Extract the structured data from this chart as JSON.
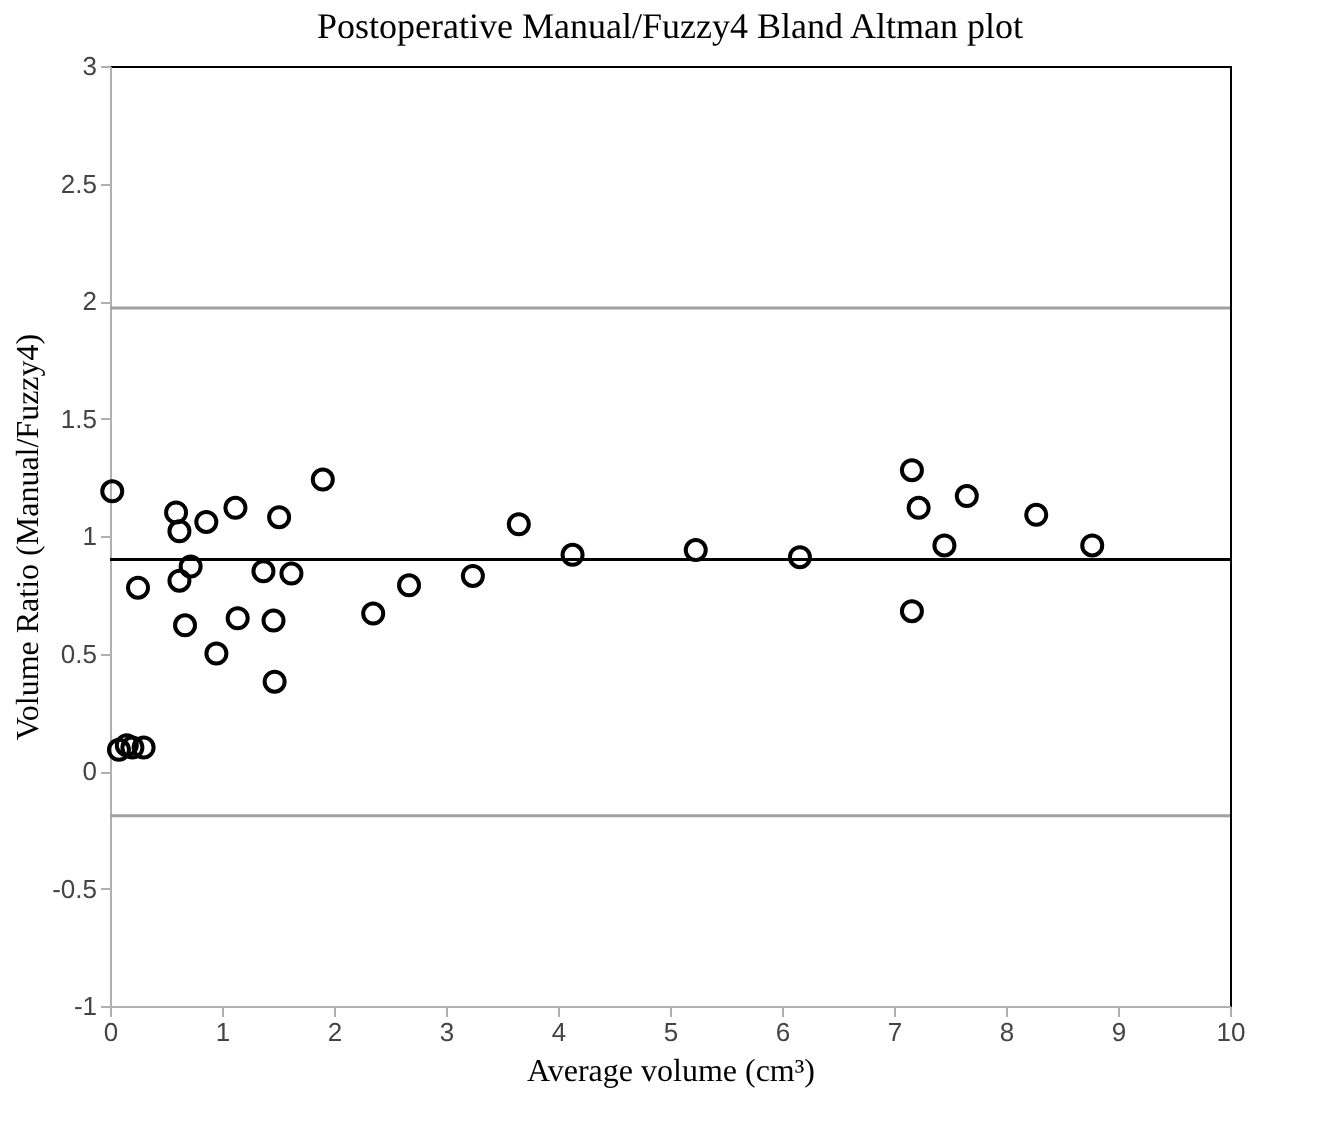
{
  "chart_data": {
    "type": "scatter",
    "title": "Postoperative Manual/Fuzzy4 Bland Altman plot",
    "xlabel": "Average volume (cm³)",
    "ylabel": "Volume Ratio (Manual/Fuzzy4)",
    "marker": "circle",
    "grid": false,
    "legend": false,
    "series": [
      {
        "color": "#000000",
        "x": [
          0.02,
          0.59,
          0.62,
          0.86,
          1.12,
          1.51,
          1.9,
          3.65,
          0.25,
          0.62,
          0.72,
          1.37,
          1.62,
          0.67,
          1.14,
          1.46,
          0.95,
          1.47,
          2.35,
          2.67,
          3.24,
          0.08,
          0.15,
          0.2,
          0.3,
          4.13,
          5.23,
          6.16,
          7.16,
          7.22,
          7.65,
          7.45,
          7.16,
          8.27,
          8.77
        ],
        "values": [
          1.19,
          1.1,
          1.02,
          1.06,
          1.12,
          1.08,
          1.24,
          1.05,
          0.78,
          0.81,
          0.87,
          0.85,
          0.84,
          0.62,
          0.65,
          0.64,
          0.5,
          0.38,
          0.67,
          0.79,
          0.83,
          0.09,
          0.11,
          0.1,
          0.1,
          0.92,
          0.94,
          0.91,
          1.28,
          1.12,
          1.17,
          0.96,
          0.68,
          1.09,
          0.96
        ]
      }
    ],
    "ref_lines": [
      {
        "axis": "y",
        "value": 0.9,
        "color": "#000000"
      },
      {
        "axis": "y",
        "value": 1.97,
        "color": "#a0a0a0"
      },
      {
        "axis": "y",
        "value": -0.19,
        "color": "#a0a0a0"
      }
    ],
    "xlim": [
      0,
      10
    ],
    "xticks": [
      0,
      1,
      2,
      3,
      4,
      5,
      6,
      7,
      8,
      9,
      10
    ],
    "ylim": [
      -1,
      3
    ],
    "yticks": [
      -1,
      -0.5,
      0,
      0.5,
      1,
      1.5,
      2,
      2.5,
      3
    ]
  }
}
